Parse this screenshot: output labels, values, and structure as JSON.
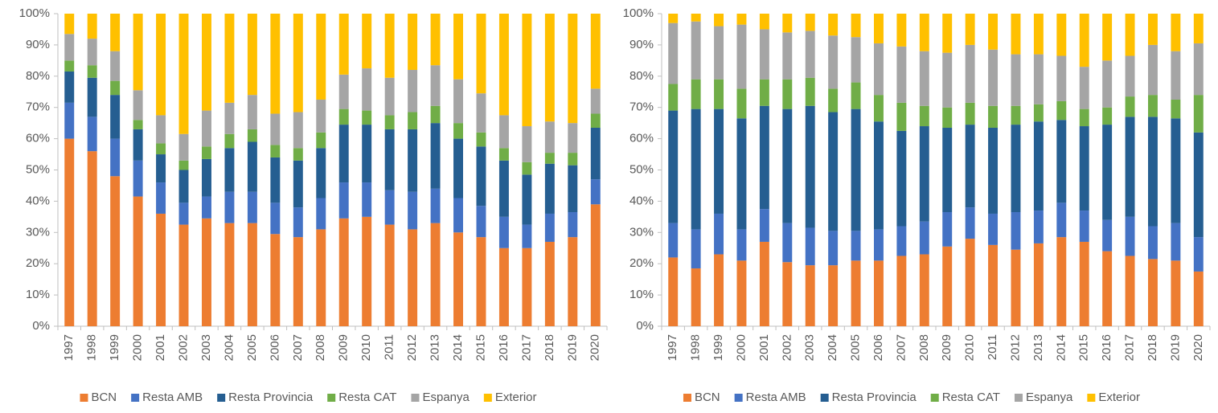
{
  "chart_data": [
    {
      "type": "bar",
      "stacked": true,
      "legend": "bottom",
      "categories": [
        "1997",
        "1998",
        "1999",
        "2000",
        "2001",
        "2002",
        "2003",
        "2004",
        "2005",
        "2006",
        "2007",
        "2008",
        "2009",
        "2010",
        "2011",
        "2012",
        "2013",
        "2014",
        "2015",
        "2016",
        "2017",
        "2018",
        "2019",
        "2020"
      ],
      "ylim": [
        0,
        100
      ],
      "yticks": [
        {
          "value": 0,
          "label": "0%"
        },
        {
          "value": 10,
          "label": "10%"
        },
        {
          "value": 20,
          "label": "20%"
        },
        {
          "value": 30,
          "label": "30%"
        },
        {
          "value": 40,
          "label": "40%"
        },
        {
          "value": 50,
          "label": "50%"
        },
        {
          "value": 60,
          "label": "60%"
        },
        {
          "value": 70,
          "label": "70%"
        },
        {
          "value": 80,
          "label": "80%"
        },
        {
          "value": 90,
          "label": "90%"
        },
        {
          "value": 100,
          "label": "100%"
        }
      ],
      "series": [
        {
          "name": "BCN",
          "color": "#ED7D31",
          "values": [
            60,
            56,
            48,
            41.5,
            36,
            32.5,
            34.5,
            33,
            33,
            29.5,
            28.5,
            31,
            34.5,
            35,
            32.5,
            31,
            33,
            30,
            28.5,
            25,
            25,
            27,
            28.5,
            39
          ]
        },
        {
          "name": "Resta AMB",
          "color": "#4472C4",
          "values": [
            11.5,
            11,
            12,
            11.5,
            10,
            7,
            7,
            10,
            10,
            10,
            9.5,
            10,
            11.5,
            11,
            11,
            12,
            11,
            11,
            10,
            10,
            7.5,
            9,
            8,
            8
          ]
        },
        {
          "name": "Resta Provincia",
          "color": "#255E91",
          "values": [
            10,
            12.5,
            14,
            10,
            9,
            10.5,
            12,
            14,
            16,
            14.5,
            15,
            16,
            18.5,
            18.5,
            19.5,
            20,
            21,
            19,
            19,
            18,
            16,
            16,
            15,
            16.5
          ]
        },
        {
          "name": "Resta CAT",
          "color": "#70AD47",
          "values": [
            3.5,
            4,
            4.5,
            3,
            3.5,
            3,
            4,
            4.5,
            4,
            4,
            4,
            5,
            5,
            4.5,
            4.5,
            5.5,
            5.5,
            5,
            4.5,
            4,
            4,
            3.5,
            4,
            4.5
          ]
        },
        {
          "name": "Espanya",
          "color": "#A5A5A5",
          "values": [
            8.5,
            8.5,
            9.5,
            9.5,
            9,
            8.5,
            11.5,
            10,
            11,
            10,
            11.5,
            10.5,
            11,
            13.5,
            12,
            13.5,
            13,
            14,
            12.5,
            10.5,
            11.5,
            10,
            9.5,
            8
          ]
        },
        {
          "name": "Exterior",
          "color": "#FFC000",
          "values": [
            6.5,
            8,
            12,
            24.5,
            32.5,
            38.5,
            31,
            28.5,
            26,
            32,
            31.5,
            27.5,
            19.5,
            17.5,
            20.5,
            18,
            16.5,
            21,
            25.5,
            32.5,
            36,
            34.5,
            35,
            24
          ]
        }
      ]
    },
    {
      "type": "bar",
      "stacked": true,
      "legend": "bottom",
      "categories": [
        "1997",
        "1998",
        "1999",
        "2000",
        "2001",
        "2002",
        "2003",
        "2004",
        "2005",
        "2006",
        "2007",
        "2008",
        "2009",
        "2010",
        "2011",
        "2012",
        "2013",
        "2014",
        "2015",
        "2016",
        "2017",
        "2018",
        "2019",
        "2020"
      ],
      "ylim": [
        0,
        100
      ],
      "yticks": [
        {
          "value": 0,
          "label": "0%"
        },
        {
          "value": 10,
          "label": "10%"
        },
        {
          "value": 20,
          "label": "20%"
        },
        {
          "value": 30,
          "label": "30%"
        },
        {
          "value": 40,
          "label": "40%"
        },
        {
          "value": 50,
          "label": "50%"
        },
        {
          "value": 60,
          "label": "60%"
        },
        {
          "value": 70,
          "label": "70%"
        },
        {
          "value": 80,
          "label": "80%"
        },
        {
          "value": 90,
          "label": "90%"
        },
        {
          "value": 100,
          "label": "100%"
        }
      ],
      "series": [
        {
          "name": "BCN",
          "color": "#ED7D31",
          "values": [
            22,
            18.5,
            23,
            21,
            27,
            20.5,
            19.5,
            19.5,
            21,
            21,
            22.5,
            23,
            25.5,
            28,
            26,
            24.5,
            26.5,
            28.5,
            27,
            24,
            22.5,
            21.5,
            21,
            17.5
          ]
        },
        {
          "name": "Resta AMB",
          "color": "#4472C4",
          "values": [
            11,
            12.5,
            13,
            10,
            10.5,
            12.5,
            12,
            11,
            9.5,
            10,
            9.5,
            10.5,
            11,
            10,
            10,
            12,
            10.5,
            11,
            10,
            10,
            12.5,
            10.5,
            12,
            11
          ]
        },
        {
          "name": "Resta Provincia",
          "color": "#255E91",
          "values": [
            36,
            38.5,
            33.5,
            35.5,
            33,
            36.5,
            39,
            38,
            39,
            34.5,
            30.5,
            30.5,
            27,
            26.5,
            27.5,
            28,
            28.5,
            26.5,
            27,
            30.5,
            32,
            35,
            33.5,
            33.5
          ]
        },
        {
          "name": "Resta CAT",
          "color": "#70AD47",
          "values": [
            8.5,
            9.5,
            9.5,
            9.5,
            8.5,
            9.5,
            9,
            7.5,
            8.5,
            8.5,
            9,
            6.5,
            6.5,
            7,
            7,
            6,
            5.5,
            6,
            5.5,
            5.5,
            6.5,
            7,
            6,
            12
          ]
        },
        {
          "name": "Espanya",
          "color": "#A5A5A5",
          "values": [
            19.5,
            18.5,
            17,
            20.5,
            16,
            15,
            15,
            17,
            14.5,
            16.5,
            18,
            17.5,
            17.5,
            18.5,
            18,
            16.5,
            16,
            14.5,
            13.5,
            15,
            13,
            16,
            15.5,
            16.5
          ]
        },
        {
          "name": "Exterior",
          "color": "#FFC000",
          "values": [
            3,
            2.5,
            4,
            3.5,
            5,
            6,
            5.5,
            7,
            7.5,
            9.5,
            10.5,
            12,
            12.5,
            10,
            11.5,
            13,
            13,
            13.5,
            17,
            15,
            13.5,
            10,
            12,
            9.5
          ]
        }
      ]
    }
  ]
}
